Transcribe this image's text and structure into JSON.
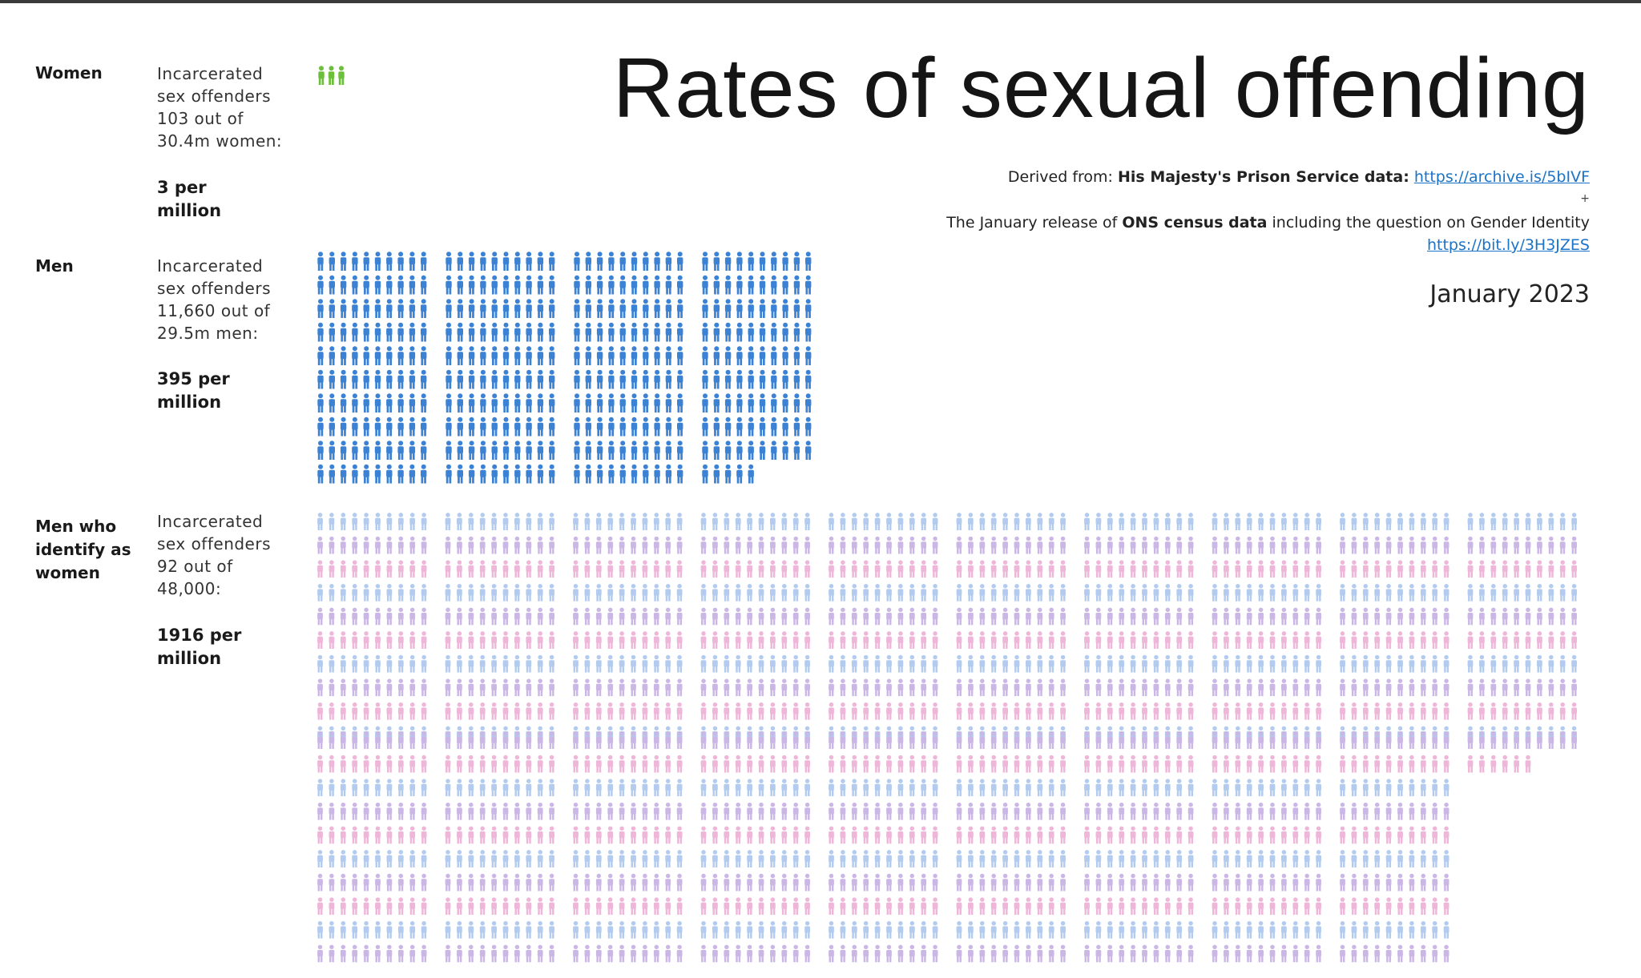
{
  "title": "Rates of sexual offending",
  "source": {
    "line1_prefix": "Derived from: ",
    "line1_bold": "His Majesty's Prison Service data:",
    "line1_link": "https://archive.is/5bIVF",
    "plus": "+",
    "line2_prefix": "The January release of ",
    "line2_bold": "ONS census data",
    "line2_suffix": " including the question on Gender Identity",
    "line2_link": "https://bit.ly/3H3JZES"
  },
  "date": "January 2023",
  "groups": [
    {
      "label": "Women",
      "desc_lines": [
        "Incarcerated",
        "sex offenders",
        "103 out of",
        "30.4m women:"
      ],
      "rate_lines": [
        "3 per million"
      ]
    },
    {
      "label_lines": [
        "Men"
      ],
      "desc_lines": [
        "Incarcerated",
        "sex offenders",
        "11,660 out of",
        "29.5m men:"
      ],
      "rate_lines": [
        "395 per",
        "million"
      ]
    },
    {
      "label_lines": [
        "Men who",
        "identify as",
        "women"
      ],
      "desc_lines": [
        "Incarcerated",
        "sex offenders",
        "92 out of",
        "48,000:"
      ],
      "rate_lines": [
        "1916 per",
        "million"
      ]
    }
  ],
  "chart_data": {
    "type": "pictogram",
    "unit": "1 figure = 1 offender per million",
    "categories": [
      "Women",
      "Men",
      "Men who identify as women"
    ],
    "values": [
      3,
      395,
      1916
    ],
    "colors": {
      "Women": "#6cbf3a",
      "Men": "#3b82d4",
      "Men who identify as women": [
        "#b3cbee",
        "#cbb7e6",
        "#eeb6d8"
      ]
    }
  }
}
